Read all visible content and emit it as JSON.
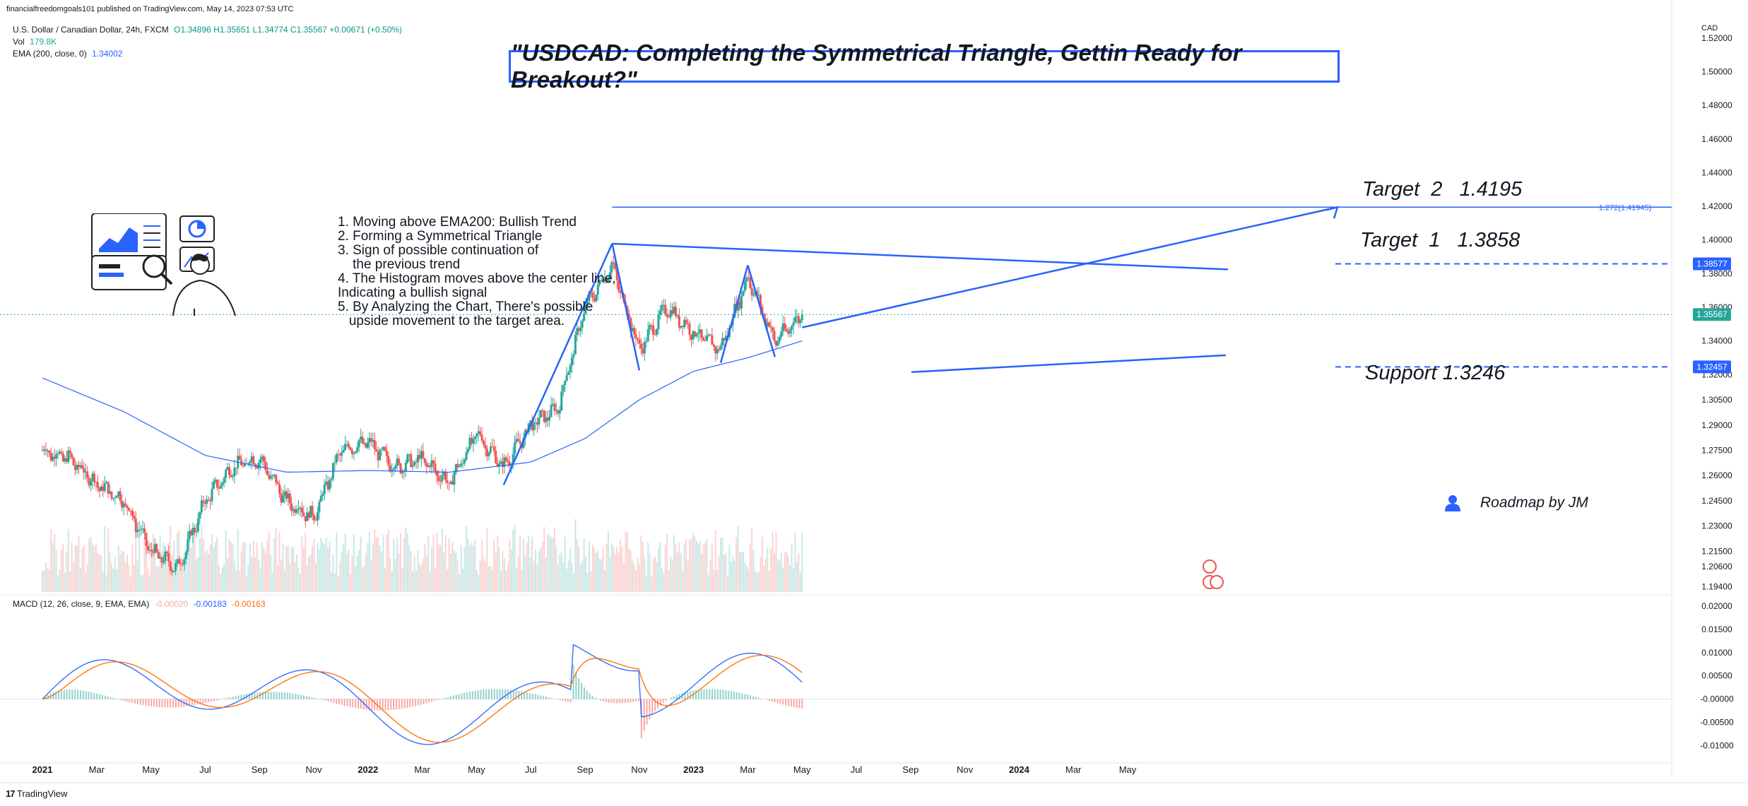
{
  "header": {
    "published": "financialfreedomgoals101 published on TradingView.com, May 14, 2023 07:53 UTC",
    "symbol_line": "U.S. Dollar / Canadian Dollar, 24h, FXCM",
    "ohlc": "O1.34896 H1.35651 L1.34774 C1.35567 +0.00671 (+0.50%)",
    "vol_label": "Vol",
    "vol_value": "179.8K",
    "ema_label": "EMA (200, close, 0)",
    "ema_value": "1.34002",
    "currency": "CAD"
  },
  "title": "\"USDCAD: Completing the Symmetrical Triangle, Gettin Ready for Breakout?\"",
  "notes": [
    "1. Moving above EMA200: Bullish Trend",
    "2. Forming a Symmetrical Triangle",
    "3. Sign of possible continuation of",
    "    the previous trend",
    "4. The Histogram moves above the center line,",
    "Indicating a bullish signal",
    "5. By Analyzing the Chart, There's possible",
    "   upside movement to the target area."
  ],
  "labels": {
    "target2": "Target  2   1.4195",
    "target1": "Target  1   1.3858",
    "support": "Support 1.3246",
    "roadmap": "Roadmap by JM",
    "fib": "1.272(1.41945)"
  },
  "macd": {
    "label": "MACD (12, 26, close, 9, EMA, EMA)",
    "hist": "-0.00020",
    "macd": "-0.00183",
    "signal": "-0.00163"
  },
  "footer": {
    "brand": "TradingView"
  },
  "colors": {
    "up": "#26a69a",
    "down": "#ef5350",
    "accent": "#2962ff",
    "ema": "#2962ff",
    "signal": "#ff6d00"
  },
  "chart_data": {
    "type": "candlestick",
    "title": "\"USDCAD: Completing the Symmetrical Triangle, Gettin Ready for Breakout?\"",
    "x_ticks": [
      "2021",
      "Mar",
      "May",
      "Jul",
      "Sep",
      "Nov",
      "2022",
      "Mar",
      "May",
      "Jul",
      "Sep",
      "Nov",
      "2023",
      "Mar",
      "May",
      "Jul",
      "Sep",
      "Nov",
      "2024",
      "Mar",
      "May"
    ],
    "price_ticks": [
      "1.52000",
      "1.50000",
      "1.48000",
      "1.46000",
      "1.44000",
      "1.42000",
      "1.40000",
      "1.38000",
      "1.36000",
      "1.34000",
      "1.32000",
      "1.30500",
      "1.29000",
      "1.27500",
      "1.26000",
      "1.24500",
      "1.23000",
      "1.21500",
      "1.20600",
      "1.19400"
    ],
    "macd_ticks": [
      "0.02000",
      "0.01500",
      "0.01000",
      "0.00500",
      "-0.00000",
      "-0.00500",
      "-0.01000"
    ],
    "price_badges": [
      "1.38577",
      "1.35567",
      "1.32457"
    ],
    "ylim": [
      1.19,
      1.53
    ],
    "levels": {
      "target2": 1.4195,
      "target1": 1.3858,
      "current": 1.3557,
      "support": 1.3246
    },
    "price_path": [
      [
        "2021-01",
        1.275
      ],
      [
        "2021-02",
        1.27
      ],
      [
        "2021-03",
        1.255
      ],
      [
        "2021-04",
        1.245
      ],
      [
        "2021-05",
        1.215
      ],
      [
        "2021-06",
        1.205
      ],
      [
        "2021-07",
        1.245
      ],
      [
        "2021-08",
        1.265
      ],
      [
        "2021-09",
        1.27
      ],
      [
        "2021-10",
        1.245
      ],
      [
        "2021-11",
        1.235
      ],
      [
        "2021-12",
        1.275
      ],
      [
        "2022-01",
        1.28
      ],
      [
        "2022-02",
        1.265
      ],
      [
        "2022-03",
        1.27
      ],
      [
        "2022-04",
        1.255
      ],
      [
        "2022-05",
        1.285
      ],
      [
        "2022-06",
        1.265
      ],
      [
        "2022-07",
        1.29
      ],
      [
        "2022-08",
        1.3
      ],
      [
        "2022-09",
        1.36
      ],
      [
        "2022-10",
        1.385
      ],
      [
        "2022-11",
        1.335
      ],
      [
        "2022-12",
        1.36
      ],
      [
        "2023-01",
        1.345
      ],
      [
        "2023-02",
        1.335
      ],
      [
        "2023-03",
        1.378
      ],
      [
        "2023-04",
        1.34
      ],
      [
        "2023-05",
        1.3557
      ]
    ],
    "ema200_path": [
      [
        "2021-01",
        1.318
      ],
      [
        "2021-04",
        1.298
      ],
      [
        "2021-07",
        1.272
      ],
      [
        "2021-10",
        1.262
      ],
      [
        "2022-01",
        1.263
      ],
      [
        "2022-04",
        1.262
      ],
      [
        "2022-07",
        1.268
      ],
      [
        "2022-09",
        1.282
      ],
      [
        "2022-11",
        1.305
      ],
      [
        "2023-01",
        1.322
      ],
      [
        "2023-03",
        1.33
      ],
      [
        "2023-05",
        1.34
      ]
    ]
  }
}
